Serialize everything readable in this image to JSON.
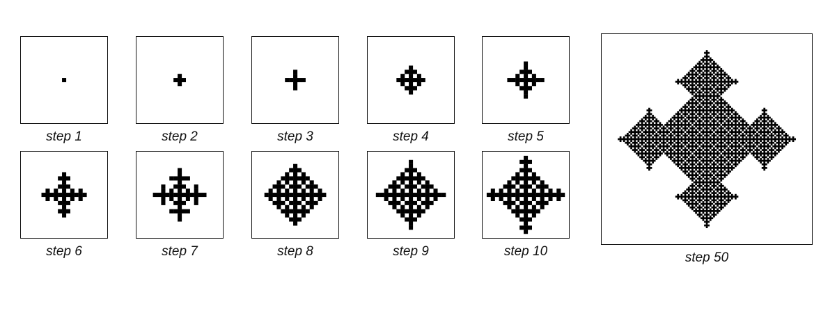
{
  "panels": [
    {
      "label": "step 1",
      "step": 1
    },
    {
      "label": "step 2",
      "step": 2
    },
    {
      "label": "step 3",
      "step": 3
    },
    {
      "label": "step 4",
      "step": 4
    },
    {
      "label": "step 5",
      "step": 5
    },
    {
      "label": "step 6",
      "step": 6
    },
    {
      "label": "step 7",
      "step": 7
    },
    {
      "label": "step 8",
      "step": 8
    },
    {
      "label": "step 9",
      "step": 9
    },
    {
      "label": "step 10",
      "step": 10
    },
    {
      "label": "step 50",
      "step": 50
    }
  ],
  "colors": {
    "cell": "#000000",
    "frame": "#111111",
    "background": "#ffffff"
  }
}
